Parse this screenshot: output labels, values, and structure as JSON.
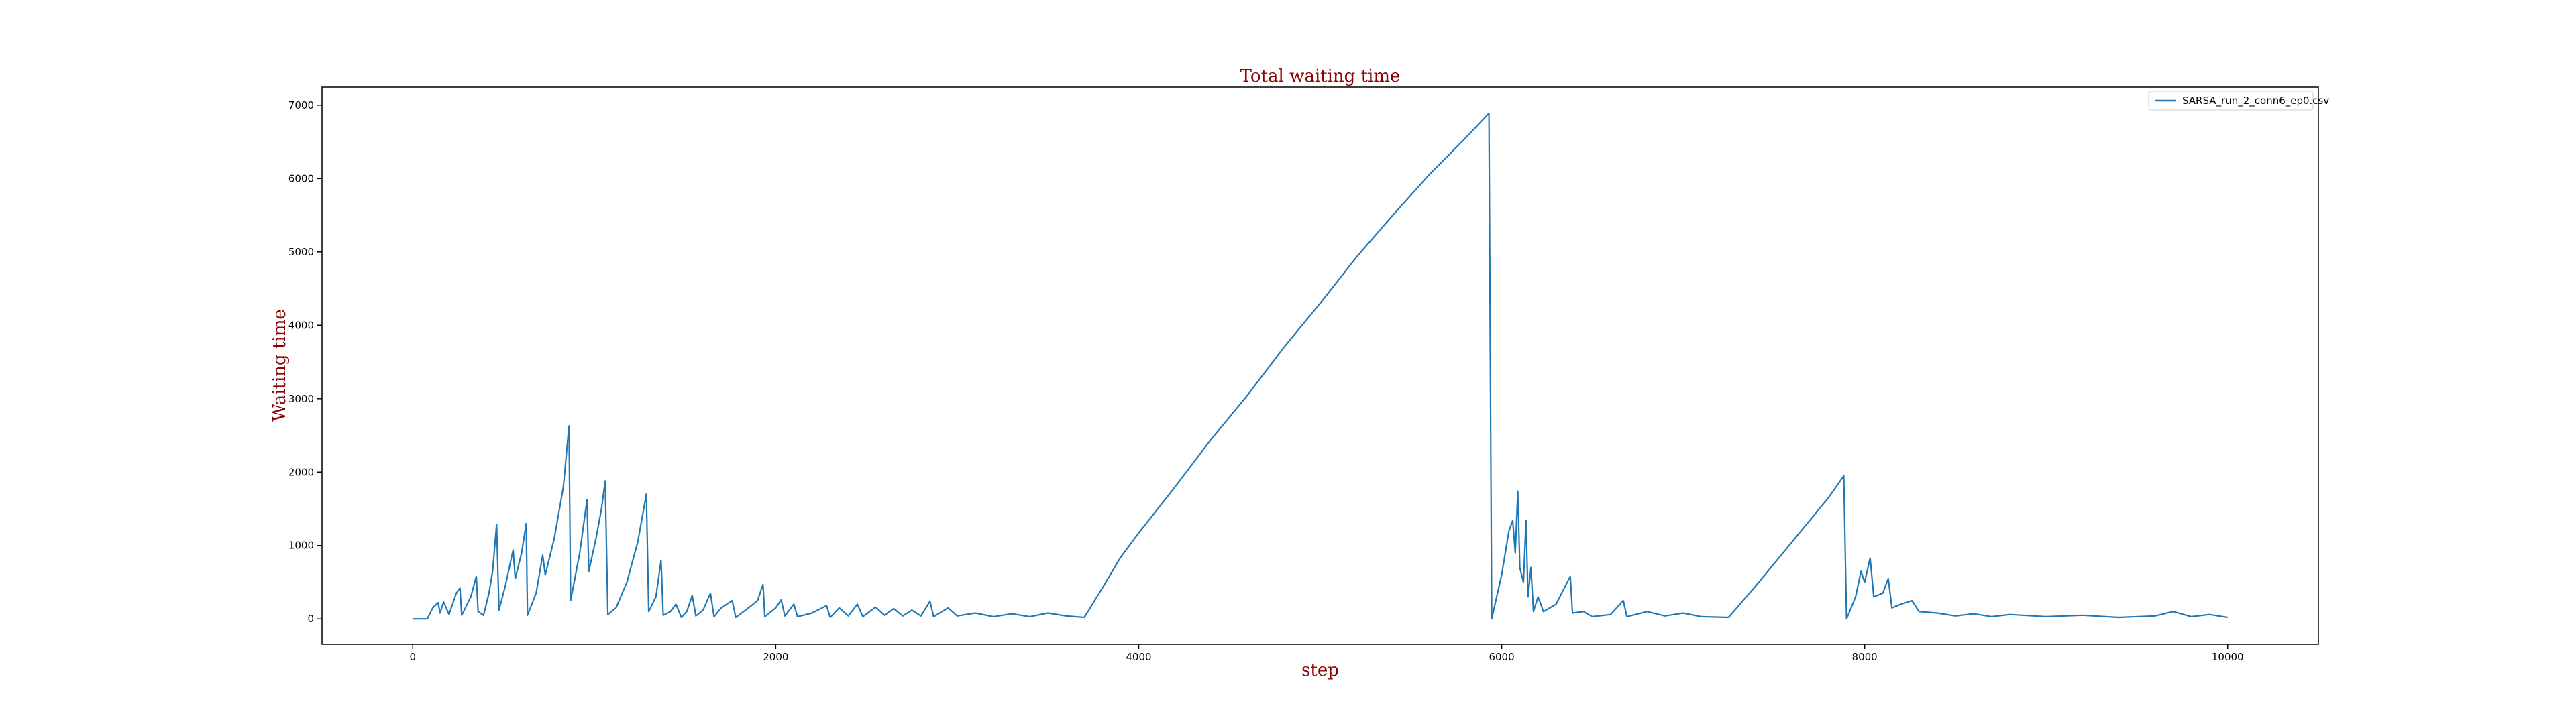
{
  "chart_data": {
    "type": "line",
    "title": "Total waiting time",
    "x_label": "step",
    "y_label": "Waiting time",
    "x": [
      0,
      80,
      110,
      140,
      150,
      170,
      200,
      240,
      260,
      270,
      320,
      350,
      360,
      390,
      420,
      440,
      462,
      475,
      510,
      553,
      565,
      600,
      625,
      632,
      680,
      716,
      730,
      780,
      830,
      861,
      870,
      920,
      960,
      970,
      1010,
      1040,
      1060,
      1075,
      1120,
      1180,
      1240,
      1287,
      1300,
      1340,
      1368,
      1380,
      1420,
      1450,
      1480,
      1510,
      1540,
      1560,
      1600,
      1640,
      1660,
      1700,
      1760,
      1780,
      1850,
      1900,
      1930,
      1940,
      2000,
      2030,
      2050,
      2100,
      2120,
      2200,
      2280,
      2300,
      2350,
      2400,
      2450,
      2480,
      2550,
      2600,
      2650,
      2700,
      2750,
      2800,
      2850,
      2870,
      2950,
      3000,
      3100,
      3200,
      3300,
      3400,
      3500,
      3600,
      3700,
      3800,
      3900,
      4000,
      4200,
      4400,
      4600,
      4800,
      5000,
      5200,
      5400,
      5600,
      5800,
      5930,
      5945,
      6000,
      6040,
      6061,
      6075,
      6089,
      6100,
      6120,
      6134,
      6145,
      6161,
      6175,
      6200,
      6230,
      6300,
      6378,
      6390,
      6450,
      6500,
      6600,
      6670,
      6690,
      6800,
      6900,
      7000,
      7100,
      7250,
      7400,
      7600,
      7800,
      7885,
      7900,
      7950,
      7980,
      8000,
      8030,
      8050,
      8100,
      8130,
      8150,
      8200,
      8260,
      8300,
      8400,
      8500,
      8600,
      8700,
      8800,
      9000,
      9200,
      9400,
      9600,
      9700,
      9800,
      9900,
      10000
    ],
    "series": [
      {
        "name": "SARSA_run_2_conn6_ep0.csv",
        "color": "#1f77b4",
        "values": [
          0,
          0,
          150,
          220,
          80,
          230,
          60,
          350,
          420,
          50,
          300,
          580,
          100,
          50,
          350,
          650,
          1290,
          120,
          450,
          940,
          550,
          900,
          1300,
          50,
          350,
          870,
          600,
          1100,
          1800,
          2630,
          250,
          900,
          1620,
          650,
          1100,
          1500,
          1880,
          60,
          150,
          500,
          1050,
          1700,
          100,
          300,
          800,
          50,
          100,
          200,
          20,
          100,
          320,
          40,
          120,
          350,
          30,
          150,
          250,
          20,
          150,
          250,
          470,
          30,
          150,
          260,
          40,
          200,
          30,
          80,
          180,
          20,
          150,
          40,
          200,
          30,
          160,
          50,
          140,
          40,
          120,
          40,
          240,
          30,
          150,
          40,
          80,
          30,
          70,
          30,
          80,
          40,
          20,
          420,
          840,
          1170,
          1800,
          2450,
          3050,
          3700,
          4300,
          4930,
          5500,
          6050,
          6550,
          6890,
          0,
          600,
          1200,
          1340,
          900,
          1740,
          700,
          500,
          1340,
          300,
          700,
          100,
          300,
          100,
          200,
          580,
          80,
          100,
          30,
          60,
          250,
          30,
          100,
          40,
          80,
          30,
          20,
          450,
          1050,
          1650,
          1950,
          0,
          300,
          650,
          500,
          830,
          300,
          350,
          550,
          150,
          200,
          250,
          100,
          80,
          40,
          70,
          30,
          60,
          30,
          50,
          20,
          40,
          100,
          30,
          60,
          20
        ]
      }
    ],
    "xlim": [
      -500,
      10500
    ],
    "ylim": [
      -345,
      7245
    ],
    "xticks": [
      0,
      2000,
      4000,
      6000,
      8000,
      10000
    ],
    "yticks": [
      0,
      1000,
      2000,
      3000,
      4000,
      5000,
      6000,
      7000
    ],
    "legend": "upper right"
  }
}
